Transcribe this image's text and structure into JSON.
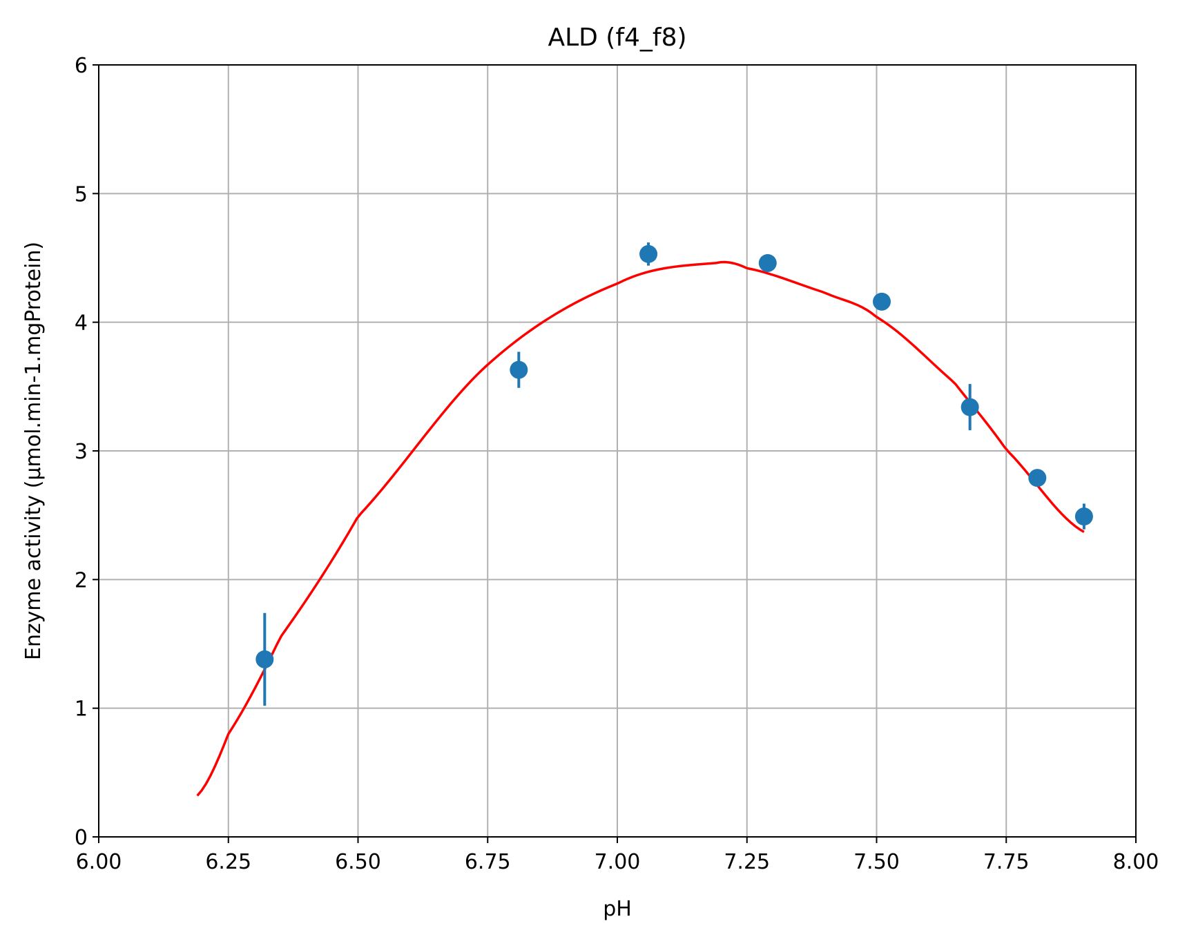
{
  "chart_data": {
    "type": "scatter",
    "title": "ALD (f4_f8)",
    "xlabel": "pH",
    "ylabel": "Enzyme activity (µmol.min-1.mgProtein)",
    "xlim": [
      6.0,
      8.0
    ],
    "ylim": [
      0,
      6
    ],
    "x_ticks": [
      "6.00",
      "6.25",
      "6.50",
      "6.75",
      "7.00",
      "7.25",
      "7.50",
      "7.75",
      "8.00"
    ],
    "y_ticks": [
      "0",
      "1",
      "2",
      "3",
      "4",
      "5",
      "6"
    ],
    "grid": true,
    "points": {
      "color": "#1f77b4",
      "x": [
        6.32,
        6.81,
        7.06,
        7.29,
        7.51,
        7.68,
        7.81,
        7.9
      ],
      "y": [
        1.38,
        3.63,
        4.53,
        4.46,
        4.16,
        3.34,
        2.79,
        2.49
      ],
      "err": [
        0.36,
        0.14,
        0.09,
        0.03,
        0.03,
        0.18,
        0.06,
        0.1
      ]
    },
    "fit_curve": {
      "color": "#ff0000",
      "x": [
        6.19,
        6.25,
        6.35,
        6.5,
        6.75,
        7.0,
        7.19,
        7.25,
        7.4,
        7.5,
        7.65,
        7.75,
        7.9
      ],
      "y": [
        0.32,
        0.8,
        1.55,
        2.49,
        3.67,
        4.3,
        4.46,
        4.42,
        4.23,
        4.04,
        3.53,
        3.01,
        2.37
      ]
    }
  }
}
